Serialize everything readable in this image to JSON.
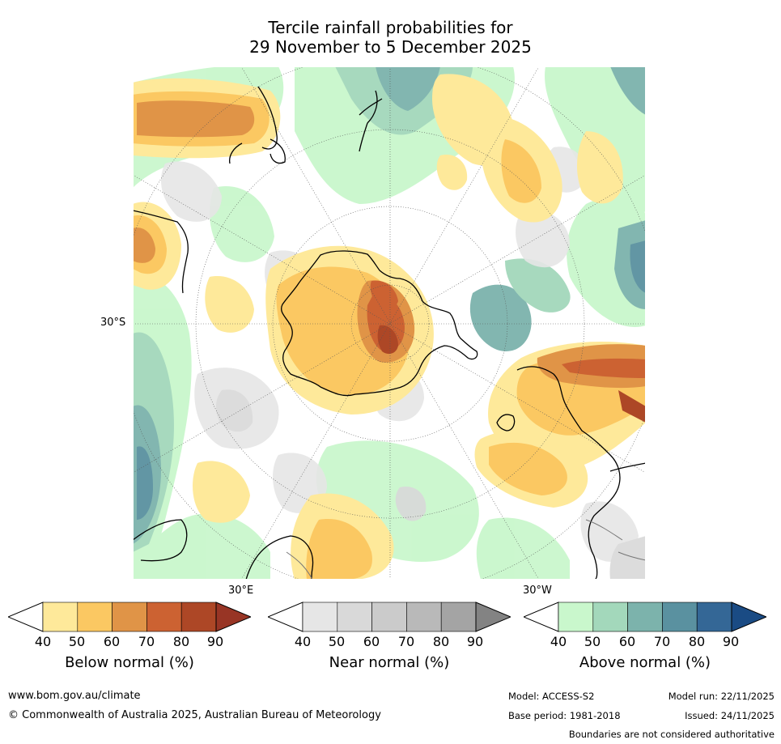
{
  "title": {
    "line1": "Tercile rainfall probabilities for",
    "line2": "29 November to 5 December 2025"
  },
  "map": {
    "lat_label": "30°S",
    "lon_labels": [
      "30°E",
      "30°W"
    ]
  },
  "legends": [
    {
      "title": "Below normal (%)",
      "ticks": [
        "40",
        "50",
        "60",
        "70",
        "80",
        "90"
      ],
      "colors": [
        "#fff",
        "#fee99a",
        "#fbc862",
        "#e09447",
        "#cc6232",
        "#ad4726",
        "#983525"
      ]
    },
    {
      "title": "Near normal (%)",
      "ticks": [
        "40",
        "50",
        "60",
        "70",
        "80",
        "90"
      ],
      "colors": [
        "#fff",
        "#e6e6e6",
        "#d9d9d9",
        "#cbcbcb",
        "#b9b9b9",
        "#a4a4a4",
        "#838383"
      ]
    },
    {
      "title": "Above normal (%)",
      "ticks": [
        "40",
        "50",
        "60",
        "70",
        "80",
        "90"
      ],
      "colors": [
        "#fff",
        "#c9f7cc",
        "#a3d8bb",
        "#7cb3ac",
        "#5a91a0",
        "#346796",
        "#1a4b84"
      ]
    }
  ],
  "footer": {
    "website": "www.bom.gov.au/climate",
    "copyright": "© Commonwealth of Australia 2025, Australian Bureau of Meteorology",
    "model": "Model: ACCESS-S2",
    "base_period": "Base period: 1981-2018",
    "model_run": "Model run: 22/11/2025",
    "issued": "Issued: 24/11/2025",
    "boundaries_note": "Boundaries are not considered authoritative"
  }
}
